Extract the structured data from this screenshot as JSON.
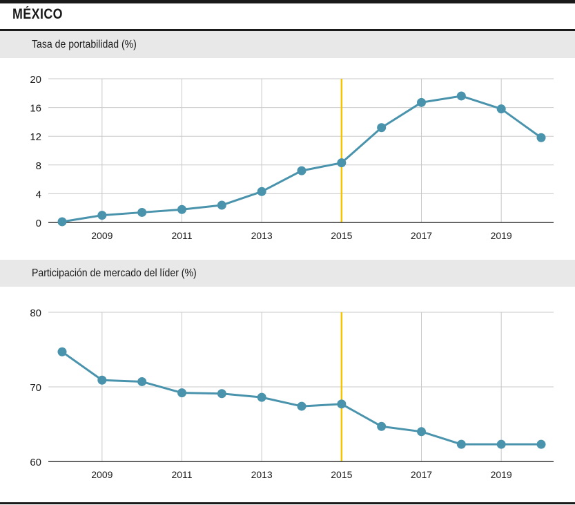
{
  "page": {
    "title": "MÉXICO"
  },
  "colors": {
    "line": "#4a93ad",
    "highlight": "#f5c400",
    "grid": "#c8c8c8",
    "axis": "#333333",
    "header_bg": "#e8e8e8"
  },
  "chart_data": [
    {
      "type": "line",
      "title": "Tasa de portabilidad (%)",
      "x": [
        2008,
        2009,
        2010,
        2011,
        2012,
        2013,
        2014,
        2015,
        2016,
        2017,
        2018,
        2019,
        2020
      ],
      "series": [
        {
          "values": [
            0.1,
            1.0,
            1.4,
            1.8,
            2.4,
            4.3,
            7.2,
            8.3,
            13.2,
            16.7,
            17.6,
            15.8,
            11.8
          ]
        }
      ],
      "x_ticks": [
        "2009",
        "2011",
        "2013",
        "2015",
        "2017",
        "2019"
      ],
      "y_ticks": [
        "0",
        "4",
        "8",
        "12",
        "16",
        "20"
      ],
      "ylim": [
        0,
        20
      ],
      "highlight_x": 2015,
      "grid": true
    },
    {
      "type": "line",
      "title": "Participación de mercado del líder (%)",
      "x": [
        2008,
        2009,
        2010,
        2011,
        2012,
        2013,
        2014,
        2015,
        2016,
        2017,
        2018,
        2019,
        2020
      ],
      "series": [
        {
          "values": [
            74.7,
            70.9,
            70.7,
            69.2,
            69.1,
            68.6,
            67.4,
            67.7,
            64.7,
            64.0,
            62.3,
            62.3,
            62.3
          ]
        }
      ],
      "x_ticks": [
        "2009",
        "2011",
        "2013",
        "2015",
        "2017",
        "2019"
      ],
      "y_ticks": [
        "60",
        "70",
        "80"
      ],
      "ylim": [
        60,
        80
      ],
      "highlight_x": 2015,
      "grid": true
    }
  ]
}
